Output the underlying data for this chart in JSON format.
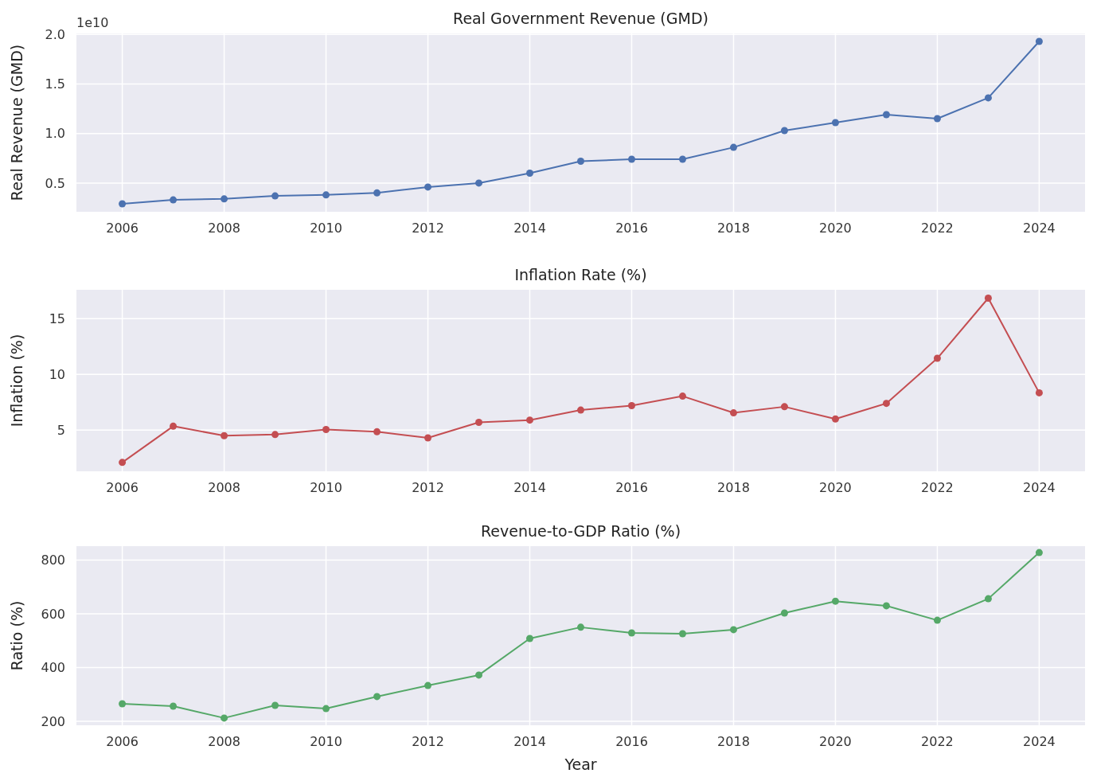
{
  "chart_data": [
    {
      "type": "line",
      "title": "Real Government Revenue (GMD)",
      "ylabel": "Real Revenue (GMD)",
      "annotations": [
        "1e10"
      ],
      "x": [
        2006,
        2007,
        2008,
        2009,
        2010,
        2011,
        2012,
        2013,
        2014,
        2015,
        2016,
        2017,
        2018,
        2019,
        2020,
        2021,
        2022,
        2023,
        2024
      ],
      "values": [
        0.29,
        0.33,
        0.34,
        0.37,
        0.38,
        0.4,
        0.46,
        0.5,
        0.6,
        0.72,
        0.74,
        0.74,
        0.86,
        1.03,
        1.11,
        1.19,
        1.15,
        1.36,
        1.93
      ],
      "color": "#4c72b0",
      "xlim": [
        2005.1,
        2024.9
      ],
      "xticks": [
        2006,
        2008,
        2010,
        2012,
        2014,
        2016,
        2018,
        2020,
        2022,
        2024
      ],
      "ylim": [
        0.21,
        2.01
      ],
      "yticks": [
        0.5,
        {
          "value": 1,
          "label": "1.0"
        },
        1.5,
        {
          "value": 2,
          "label": "2.0"
        }
      ],
      "grid": true,
      "marker": "circle"
    },
    {
      "type": "line",
      "title": "Inflation Rate (%)",
      "ylabel": "Inflation (%)",
      "x": [
        2006,
        2007,
        2008,
        2009,
        2010,
        2011,
        2012,
        2013,
        2014,
        2015,
        2016,
        2017,
        2018,
        2019,
        2020,
        2021,
        2022,
        2023,
        2024
      ],
      "values": [
        2.1,
        5.35,
        4.5,
        4.6,
        5.05,
        4.85,
        4.3,
        5.7,
        5.9,
        6.8,
        7.2,
        8.05,
        6.55,
        7.1,
        6.0,
        7.4,
        11.45,
        16.85,
        8.35
      ],
      "color": "#c44e52",
      "xlim": [
        2005.1,
        2024.9
      ],
      "xticks": [
        2006,
        2008,
        2010,
        2012,
        2014,
        2016,
        2018,
        2020,
        2022,
        2024
      ],
      "ylim": [
        1.3,
        17.6
      ],
      "yticks": [
        5,
        10,
        15
      ],
      "grid": true,
      "marker": "circle"
    },
    {
      "type": "line",
      "title": "Revenue-to-GDP Ratio (%)",
      "ylabel": "Ratio (%)",
      "xlabel": "Year",
      "x": [
        2006,
        2007,
        2008,
        2009,
        2010,
        2011,
        2012,
        2013,
        2014,
        2015,
        2016,
        2017,
        2018,
        2019,
        2020,
        2021,
        2022,
        2023,
        2024
      ],
      "values": [
        265,
        256,
        212,
        259,
        247,
        292,
        333,
        372,
        508,
        550,
        529,
        526,
        541,
        603,
        647,
        630,
        576,
        656,
        828
      ],
      "color": "#55a868",
      "xlim": [
        2005.1,
        2024.9
      ],
      "xticks": [
        2006,
        2008,
        2010,
        2012,
        2014,
        2016,
        2018,
        2020,
        2022,
        2024
      ],
      "ylim": [
        185,
        852
      ],
      "yticks": [
        200,
        400,
        600,
        800
      ],
      "grid": true,
      "marker": "circle"
    }
  ]
}
